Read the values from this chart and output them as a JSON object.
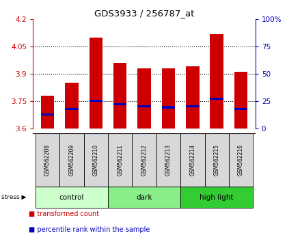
{
  "title": "GDS3933 / 256787_at",
  "samples": [
    "GSM562208",
    "GSM562209",
    "GSM562210",
    "GSM562211",
    "GSM562212",
    "GSM562213",
    "GSM562214",
    "GSM562215",
    "GSM562216"
  ],
  "bar_values": [
    3.78,
    3.85,
    4.1,
    3.96,
    3.93,
    3.93,
    3.94,
    4.12,
    3.91
  ],
  "bar_bottom": 3.6,
  "percentile_values": [
    3.675,
    3.705,
    3.752,
    3.732,
    3.722,
    3.715,
    3.722,
    3.762,
    3.705
  ],
  "ylim": [
    3.6,
    4.2
  ],
  "yticks": [
    3.6,
    3.75,
    3.9,
    4.05,
    4.2
  ],
  "right_ylim": [
    0,
    100
  ],
  "right_yticks": [
    0,
    25,
    50,
    75,
    100
  ],
  "bar_color": "#cc0000",
  "blue_color": "#0000bb",
  "groups": [
    {
      "label": "control",
      "start": 0,
      "end": 3,
      "color": "#ccffcc"
    },
    {
      "label": "dark",
      "start": 3,
      "end": 6,
      "color": "#88ee88"
    },
    {
      "label": "high light",
      "start": 6,
      "end": 9,
      "color": "#33cc33"
    }
  ],
  "title_color": "#000000",
  "left_tick_color": "#cc0000",
  "right_tick_color": "#0000bb",
  "stress_label": "stress",
  "legend_items": [
    {
      "label": "transformed count",
      "color": "#cc0000"
    },
    {
      "label": "percentile rank within the sample",
      "color": "#0000bb"
    }
  ]
}
